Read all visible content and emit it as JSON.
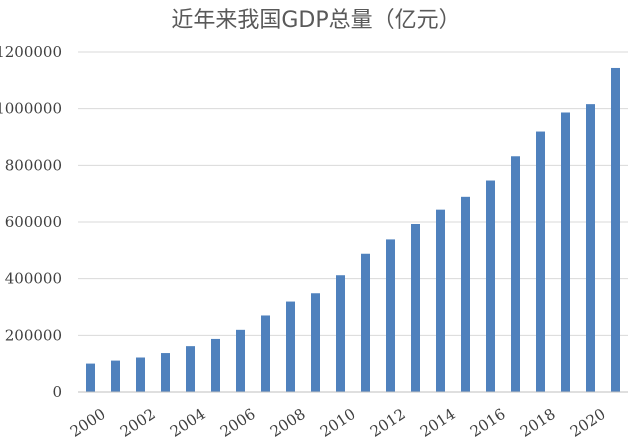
{
  "chart_data": {
    "type": "bar",
    "title": "近年来我国GDP总量（亿元）",
    "xlabel": "",
    "ylabel": "",
    "categories": [
      "2000",
      "2001",
      "2002",
      "2003",
      "2004",
      "2005",
      "2006",
      "2007",
      "2008",
      "2009",
      "2010",
      "2011",
      "2012",
      "2013",
      "2014",
      "2015",
      "2016",
      "2017",
      "2018",
      "2019",
      "2020",
      "2021"
    ],
    "x_tick_labels": [
      "2000",
      "2002",
      "2004",
      "2006",
      "2008",
      "2010",
      "2012",
      "2014",
      "2016",
      "2018",
      "2020"
    ],
    "x_tick_categories": [
      "2000",
      "2002",
      "2004",
      "2006",
      "2008",
      "2010",
      "2012",
      "2014",
      "2016",
      "2018",
      "2020"
    ],
    "values": [
      100280,
      110863,
      121717,
      137422,
      161840,
      187319,
      219439,
      270092,
      319245,
      348518,
      412119,
      487940,
      538580,
      592963,
      643563,
      688858,
      746395,
      832036,
      919281,
      986515,
      1015986,
      1143670
    ],
    "ylim": [
      0,
      1200000
    ],
    "y_ticks": [
      0,
      200000,
      400000,
      600000,
      800000,
      1000000,
      1200000
    ],
    "y_tick_labels": [
      "0",
      "200000",
      "400000",
      "600000",
      "800000",
      "1000000",
      "1200000"
    ],
    "grid": true,
    "legend": "none",
    "bar_color": "#4f81bd"
  }
}
